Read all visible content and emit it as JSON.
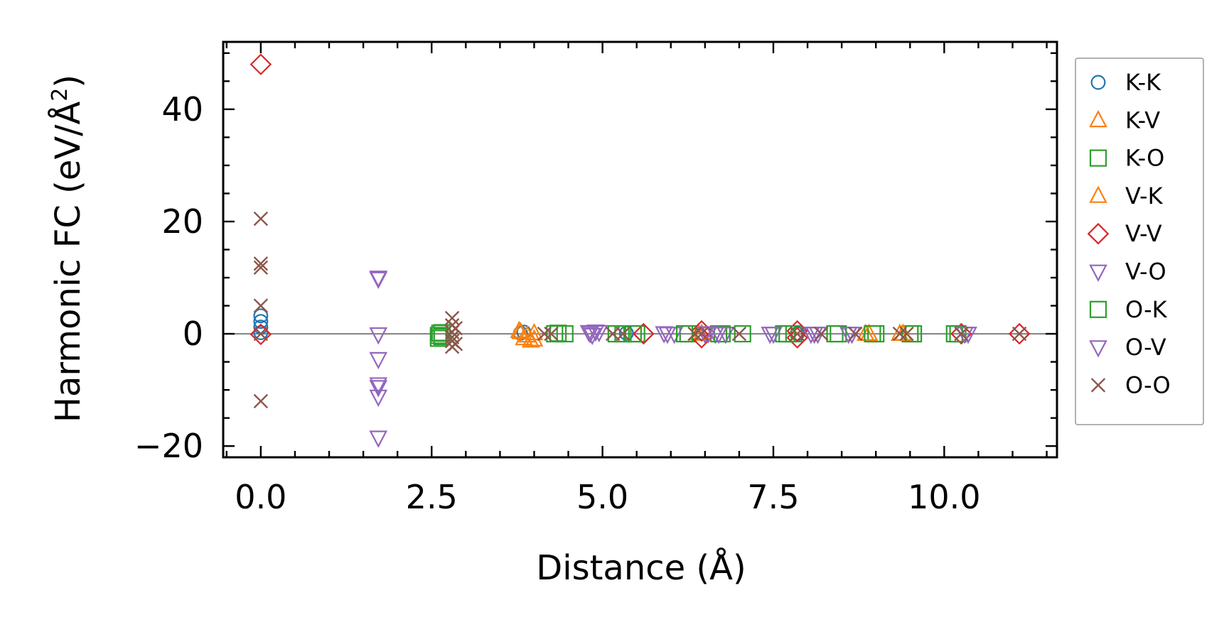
{
  "chart_data": {
    "type": "scatter",
    "title": "",
    "xlabel": "Distance (Å)",
    "ylabel": "Harmonic FC (eV/Å",
    "ylabel_superscript": "2",
    "ylabel_close": ")",
    "xlim": [
      -0.55,
      11.65
    ],
    "ylim": [
      -22,
      52
    ],
    "xticks": [
      0.0,
      2.5,
      5.0,
      7.5,
      10.0
    ],
    "xtick_labels": [
      "0.0",
      "2.5",
      "5.0",
      "7.5",
      "10.0"
    ],
    "yticks": [
      -20,
      0,
      20,
      40
    ],
    "ytick_labels": [
      "−20",
      "0",
      "20",
      "40"
    ],
    "reference_line_y": 0,
    "legend_position": "outside-right",
    "series": [
      {
        "name": "K-K",
        "marker": "circle",
        "color": "#1f77b4",
        "points": [
          [
            0.0,
            3.2
          ],
          [
            0.0,
            2.2
          ],
          [
            0.0,
            1.2
          ],
          [
            0.0,
            0.2
          ],
          [
            3.8,
            0.1
          ],
          [
            3.85,
            0.3
          ],
          [
            5.35,
            0.1
          ],
          [
            7.85,
            0.0
          ]
        ]
      },
      {
        "name": "K-V",
        "marker": "triangle-up",
        "color": "#ff7f0e",
        "points": [
          [
            3.8,
            0.3
          ],
          [
            3.85,
            -0.8
          ],
          [
            3.95,
            -1.2
          ],
          [
            4.0,
            0.1
          ],
          [
            6.4,
            0.1
          ],
          [
            8.85,
            0.0
          ],
          [
            9.35,
            0.0
          ]
        ]
      },
      {
        "name": "K-O",
        "marker": "square",
        "color": "#2ca02c",
        "points": [
          [
            2.6,
            -0.3
          ],
          [
            2.6,
            -0.8
          ],
          [
            2.65,
            0.2
          ],
          [
            2.65,
            -0.5
          ],
          [
            4.3,
            0.0
          ],
          [
            4.45,
            0.0
          ],
          [
            5.2,
            0.0
          ],
          [
            5.5,
            0.0
          ],
          [
            6.25,
            0.0
          ],
          [
            6.7,
            0.0
          ],
          [
            7.65,
            0.0
          ],
          [
            7.8,
            0.0
          ],
          [
            8.4,
            0.0
          ],
          [
            9.0,
            0.0
          ],
          [
            9.5,
            0.0
          ],
          [
            10.2,
            0.0
          ]
        ]
      },
      {
        "name": "V-K",
        "marker": "triangle-up",
        "color": "#ff7f0e",
        "points": [
          [
            3.78,
            0.5
          ],
          [
            3.9,
            -0.3
          ],
          [
            4.0,
            -1.0
          ],
          [
            6.45,
            0.0
          ],
          [
            8.9,
            0.0
          ],
          [
            9.4,
            0.0
          ]
        ]
      },
      {
        "name": "V-V",
        "marker": "diamond",
        "color": "#d62728",
        "points": [
          [
            0.0,
            48.0
          ],
          [
            0.0,
            -0.1
          ],
          [
            5.6,
            0.0
          ],
          [
            6.45,
            0.5
          ],
          [
            6.45,
            -0.7
          ],
          [
            7.85,
            0.5
          ],
          [
            7.85,
            -0.7
          ],
          [
            10.25,
            0.0
          ],
          [
            11.1,
            0.0
          ]
        ]
      },
      {
        "name": "V-O",
        "marker": "triangle-down",
        "color": "#9467bd",
        "points": [
          [
            1.72,
            9.8
          ],
          [
            1.72,
            -0.1
          ],
          [
            1.72,
            -4.5
          ],
          [
            1.72,
            -9.5
          ],
          [
            1.72,
            -11.2
          ],
          [
            1.72,
            -18.5
          ],
          [
            4.8,
            0.3
          ],
          [
            4.85,
            -0.2
          ],
          [
            4.9,
            0.4
          ],
          [
            5.95,
            0.0
          ],
          [
            6.05,
            0.0
          ],
          [
            6.5,
            0.0
          ],
          [
            6.65,
            0.0
          ],
          [
            6.8,
            0.0
          ],
          [
            7.5,
            0.0
          ],
          [
            8.05,
            0.0
          ],
          [
            8.15,
            0.0
          ],
          [
            8.65,
            0.0
          ],
          [
            10.35,
            0.0
          ]
        ]
      },
      {
        "name": "O-K",
        "marker": "square",
        "color": "#2ca02c",
        "points": [
          [
            2.62,
            0.1
          ],
          [
            4.35,
            0.1
          ],
          [
            5.3,
            0.0
          ],
          [
            5.45,
            0.0
          ],
          [
            6.2,
            0.0
          ],
          [
            6.75,
            0.0
          ],
          [
            7.05,
            0.0
          ],
          [
            7.7,
            0.0
          ],
          [
            8.45,
            0.0
          ],
          [
            8.95,
            0.0
          ],
          [
            9.55,
            0.0
          ],
          [
            10.15,
            0.0
          ]
        ]
      },
      {
        "name": "O-V",
        "marker": "triangle-down",
        "color": "#9467bd",
        "points": [
          [
            1.72,
            10.0
          ],
          [
            1.72,
            -9.0
          ],
          [
            4.82,
            0.1
          ],
          [
            4.95,
            0.3
          ],
          [
            5.9,
            0.1
          ],
          [
            6.55,
            0.1
          ],
          [
            6.7,
            0.0
          ],
          [
            7.45,
            0.0
          ],
          [
            8.1,
            0.0
          ],
          [
            8.6,
            0.0
          ],
          [
            10.3,
            0.0
          ]
        ]
      },
      {
        "name": "O-O",
        "marker": "x",
        "color": "#8c564b",
        "points": [
          [
            0.0,
            20.5
          ],
          [
            0.0,
            12.5
          ],
          [
            0.0,
            11.8
          ],
          [
            0.0,
            5.0
          ],
          [
            0.0,
            0.0
          ],
          [
            0.0,
            -12.0
          ],
          [
            2.8,
            2.8
          ],
          [
            2.8,
            1.5
          ],
          [
            2.8,
            0.3
          ],
          [
            2.8,
            -0.6
          ],
          [
            2.8,
            -1.3
          ],
          [
            2.8,
            -2.3
          ],
          [
            2.85,
            1.0
          ],
          [
            2.85,
            -1.8
          ],
          [
            4.15,
            0.0
          ],
          [
            4.25,
            0.0
          ],
          [
            5.15,
            0.0
          ],
          [
            5.3,
            0.0
          ],
          [
            6.35,
            0.0
          ],
          [
            6.45,
            0.0
          ],
          [
            7.0,
            0.0
          ],
          [
            7.85,
            0.0
          ],
          [
            8.2,
            0.0
          ],
          [
            8.7,
            0.0
          ],
          [
            9.35,
            0.0
          ],
          [
            9.45,
            0.0
          ],
          [
            10.25,
            0.0
          ],
          [
            11.1,
            0.0
          ]
        ]
      }
    ]
  }
}
